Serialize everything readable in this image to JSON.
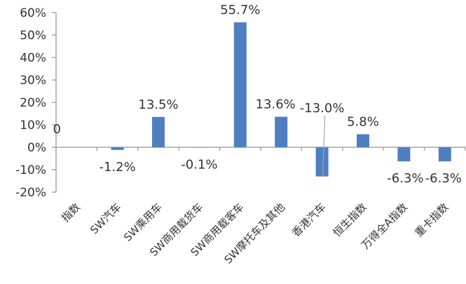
{
  "chart_data": {
    "type": "bar",
    "title": "",
    "xlabel": "",
    "ylabel": "",
    "ylim": [
      -20,
      60
    ],
    "yticks": [
      60,
      50,
      40,
      30,
      20,
      10,
      0,
      -10,
      -20
    ],
    "ytick_labels": [
      "60%",
      "50%",
      "40%",
      "30%",
      "20%",
      "10%",
      "0%",
      "-10%",
      "-20%"
    ],
    "categories": [
      "指数",
      "SW汽车",
      "SW乘用车",
      "SW商用载货车",
      "SW商用载客车",
      "SW摩托车及其他",
      "香港汽车",
      "恒生指数",
      "万得全A指数",
      "重卡指数"
    ],
    "values": [
      0,
      -1.2,
      13.5,
      -0.1,
      55.7,
      13.6,
      -13.0,
      5.8,
      -6.3,
      -6.3
    ],
    "data_labels": [
      "0",
      "-1.2%",
      "13.5%",
      "-0.1%",
      "55.7%",
      "13.6%",
      "-13.0%",
      "5.8%",
      "-6.3%",
      "-6.3%"
    ],
    "grid": false,
    "legend": "none",
    "bar_color": "#4F7FC1",
    "axis_color": "#A6A6A6"
  }
}
